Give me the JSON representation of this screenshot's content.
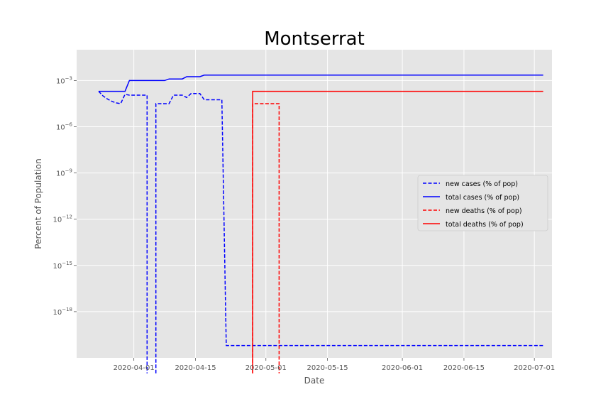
{
  "chart_data": {
    "type": "line",
    "title": "Montserrat",
    "xlabel": "Date",
    "ylabel": "Percent of Population",
    "yscale": "log",
    "ylim_exp": [
      -21,
      -1
    ],
    "xlim": [
      "2020-03-19",
      "2020-07-05"
    ],
    "grid": true,
    "legend_position": "center-right",
    "x_tick_labels": [
      "2020-04-01",
      "2020-04-15",
      "2020-05-01",
      "2020-05-15",
      "2020-06-01",
      "2020-06-15",
      "2020-07-01"
    ],
    "y_ticks": [
      {
        "base": "10",
        "exp": "−3",
        "value_exp": -3
      },
      {
        "base": "10",
        "exp": "−6",
        "value_exp": -6
      },
      {
        "base": "10",
        "exp": "−9",
        "value_exp": -9
      },
      {
        "base": "10",
        "exp": "−12",
        "value_exp": -12
      },
      {
        "base": "10",
        "exp": "−15",
        "value_exp": -15
      },
      {
        "base": "10",
        "exp": "−18",
        "value_exp": -18
      }
    ],
    "series": [
      {
        "name": "new cases (% of pop)",
        "color": "#0000ff",
        "style": "dashed",
        "points": [
          [
            "2020-03-24",
            -3.7
          ],
          [
            "2020-03-25",
            -4.0
          ],
          [
            "2020-03-26",
            -4.2
          ],
          [
            "2020-03-27",
            -4.35
          ],
          [
            "2020-03-28",
            -4.45
          ],
          [
            "2020-03-29",
            -4.5
          ],
          [
            "2020-03-30",
            -3.9
          ],
          [
            "2020-03-31",
            -3.95
          ],
          [
            "2020-04-01",
            -3.95
          ],
          [
            "2020-04-02",
            -3.95
          ],
          [
            "2020-04-03",
            -3.95
          ],
          [
            "2020-04-04",
            -3.95
          ],
          [
            "2020-04-04",
            -22
          ],
          null,
          [
            "2020-04-06",
            -22
          ],
          [
            "2020-04-06",
            -4.5
          ],
          [
            "2020-04-07",
            -4.5
          ],
          [
            "2020-04-08",
            -4.5
          ],
          [
            "2020-04-09",
            -4.5
          ],
          [
            "2020-04-10",
            -3.95
          ],
          [
            "2020-04-11",
            -3.95
          ],
          [
            "2020-04-12",
            -3.95
          ],
          [
            "2020-04-13",
            -4.1
          ],
          [
            "2020-04-14",
            -3.85
          ],
          [
            "2020-04-15",
            -3.85
          ],
          [
            "2020-04-16",
            -3.85
          ],
          [
            "2020-04-17",
            -4.25
          ],
          [
            "2020-04-18",
            -4.25
          ],
          [
            "2020-04-19",
            -4.25
          ],
          [
            "2020-04-20",
            -4.25
          ],
          [
            "2020-04-21",
            -4.25
          ],
          [
            "2020-04-22",
            -20.2
          ],
          [
            "2020-07-03",
            -20.2
          ]
        ]
      },
      {
        "name": "total cases (% of pop)",
        "color": "#0000ff",
        "style": "solid",
        "points": [
          [
            "2020-03-24",
            -3.7
          ],
          [
            "2020-03-30",
            -3.7
          ],
          [
            "2020-03-31",
            -3.0
          ],
          [
            "2020-04-08",
            -3.0
          ],
          [
            "2020-04-09",
            -2.9
          ],
          [
            "2020-04-12",
            -2.9
          ],
          [
            "2020-04-13",
            -2.75
          ],
          [
            "2020-04-16",
            -2.75
          ],
          [
            "2020-04-17",
            -2.65
          ],
          [
            "2020-07-03",
            -2.65
          ]
        ]
      },
      {
        "name": "new deaths (% of pop)",
        "color": "#ff0000",
        "style": "dashed",
        "points": [
          [
            "2020-04-28",
            -22
          ],
          [
            "2020-04-28",
            -4.5
          ],
          [
            "2020-05-04",
            -4.5
          ],
          [
            "2020-05-04",
            -22
          ]
        ]
      },
      {
        "name": "total deaths (% of pop)",
        "color": "#ff0000",
        "style": "solid",
        "points": [
          [
            "2020-04-28",
            -22
          ],
          [
            "2020-04-28",
            -3.7
          ],
          [
            "2020-07-03",
            -3.7
          ]
        ]
      }
    ]
  }
}
